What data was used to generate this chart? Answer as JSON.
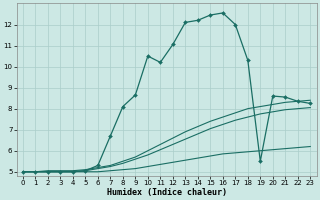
{
  "xlabel": "Humidex (Indice chaleur)",
  "xlim": [
    -0.5,
    23.5
  ],
  "ylim": [
    4.8,
    13.0
  ],
  "yticks": [
    5,
    6,
    7,
    8,
    9,
    10,
    11,
    12
  ],
  "xticks": [
    0,
    1,
    2,
    3,
    4,
    5,
    6,
    7,
    8,
    9,
    10,
    11,
    12,
    13,
    14,
    15,
    16,
    17,
    18,
    19,
    20,
    21,
    22,
    23
  ],
  "background_color": "#cce8e4",
  "grid_color": "#aaceca",
  "line_color": "#1a6e64",
  "line1": {
    "x": [
      0,
      1,
      2,
      3,
      4,
      5,
      6,
      7,
      8,
      9,
      10,
      11,
      12,
      13,
      14,
      15,
      16,
      17,
      18,
      19,
      20,
      21,
      22,
      23
    ],
    "y": [
      5.0,
      5.0,
      5.0,
      5.0,
      5.0,
      5.0,
      5.0,
      5.05,
      5.1,
      5.15,
      5.25,
      5.35,
      5.45,
      5.55,
      5.65,
      5.75,
      5.85,
      5.9,
      5.95,
      6.0,
      6.05,
      6.1,
      6.15,
      6.2
    ]
  },
  "line2": {
    "x": [
      0,
      1,
      2,
      3,
      4,
      5,
      6,
      7,
      8,
      9,
      10,
      11,
      12,
      13,
      14,
      15,
      16,
      17,
      18,
      19,
      20,
      21,
      22,
      23
    ],
    "y": [
      5.0,
      5.0,
      5.0,
      5.0,
      5.0,
      5.05,
      5.15,
      5.25,
      5.4,
      5.6,
      5.8,
      6.05,
      6.3,
      6.55,
      6.8,
      7.05,
      7.25,
      7.45,
      7.6,
      7.75,
      7.85,
      7.95,
      8.0,
      8.05
    ]
  },
  "line3": {
    "x": [
      0,
      1,
      2,
      3,
      4,
      5,
      6,
      7,
      8,
      9,
      10,
      11,
      12,
      13,
      14,
      15,
      16,
      17,
      18,
      19,
      20,
      21,
      22,
      23
    ],
    "y": [
      5.0,
      5.0,
      5.05,
      5.05,
      5.05,
      5.1,
      5.2,
      5.3,
      5.5,
      5.7,
      6.0,
      6.3,
      6.6,
      6.9,
      7.15,
      7.4,
      7.6,
      7.8,
      8.0,
      8.1,
      8.2,
      8.3,
      8.35,
      8.4
    ]
  },
  "line_main": {
    "x": [
      0,
      1,
      2,
      3,
      4,
      5,
      6,
      7,
      8,
      9,
      10,
      11,
      12,
      13,
      14,
      15,
      16,
      17,
      18,
      19,
      20,
      21,
      22,
      23
    ],
    "y": [
      5.0,
      5.0,
      5.0,
      5.0,
      5.0,
      5.05,
      5.3,
      6.7,
      8.1,
      8.65,
      10.5,
      10.2,
      11.05,
      12.1,
      12.2,
      12.45,
      12.55,
      12.0,
      10.3,
      5.5,
      8.6,
      8.55,
      8.35,
      8.25
    ]
  }
}
